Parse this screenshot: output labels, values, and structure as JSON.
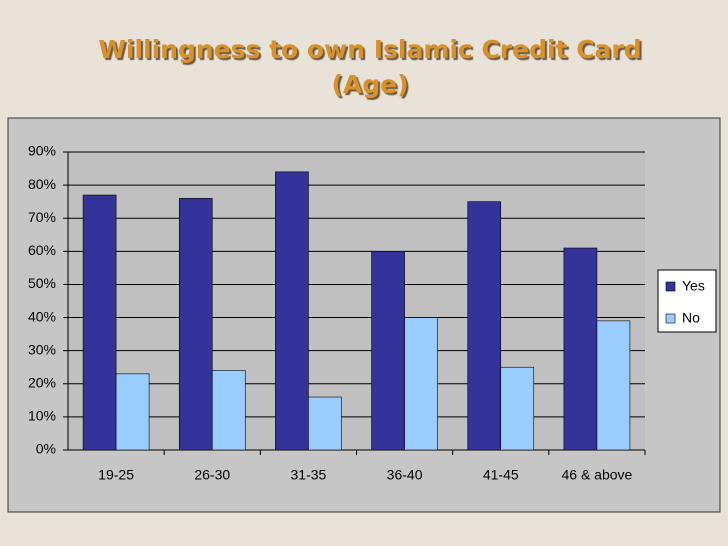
{
  "chart_data": {
    "type": "bar",
    "title": "Willingness to own Islamic Credit Card (Age)",
    "categories": [
      "19-25",
      "26-30",
      "31-35",
      "36-40",
      "41-45",
      "46 & above"
    ],
    "series": [
      {
        "name": "Yes",
        "color": "#333399",
        "values": [
          77,
          76,
          84,
          60,
          75,
          61
        ]
      },
      {
        "name": "No",
        "color": "#99ccff",
        "values": [
          23,
          24,
          16,
          40,
          25,
          39
        ]
      }
    ],
    "ylim": [
      0,
      90
    ],
    "yticks": [
      {
        "value": 0,
        "label": "0%"
      },
      {
        "value": 10,
        "label": "10%"
      },
      {
        "value": 20,
        "label": "20%"
      },
      {
        "value": 30,
        "label": "30%"
      },
      {
        "value": 40,
        "label": "40%"
      },
      {
        "value": 50,
        "label": "50%"
      },
      {
        "value": 60,
        "label": "60%"
      },
      {
        "value": 70,
        "label": "70%"
      },
      {
        "value": 80,
        "label": "80%"
      },
      {
        "value": 90,
        "label": "90%"
      }
    ],
    "grid": true,
    "legend": "right"
  }
}
